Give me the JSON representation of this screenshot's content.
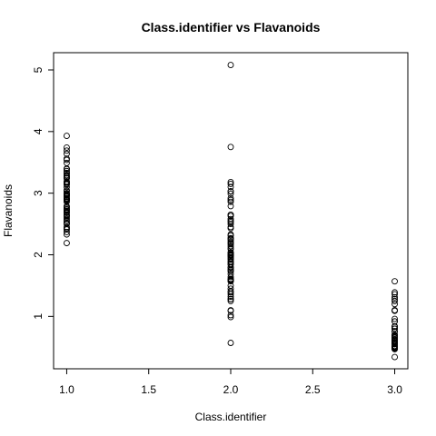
{
  "chart_data": {
    "type": "scatter",
    "title": "Class.identifier vs Flavanoids",
    "xlabel": "Class.identifier",
    "ylabel": "Flavanoids",
    "xlim": [
      0.92,
      3.08
    ],
    "ylim": [
      0.15,
      5.28
    ],
    "xticks": [
      1.0,
      1.5,
      2.0,
      2.5,
      3.0
    ],
    "xtick_labels": [
      "1.0",
      "1.5",
      "2.0",
      "2.5",
      "3.0"
    ],
    "yticks": [
      1,
      2,
      3,
      4,
      5
    ],
    "ytick_labels": [
      "1",
      "2",
      "3",
      "4",
      "5"
    ],
    "grid": false,
    "legend": "none",
    "series": [
      {
        "x": [
          1,
          1,
          1,
          1,
          1,
          1,
          1,
          1,
          1,
          1,
          1,
          1,
          1,
          1,
          1,
          1,
          1,
          1,
          1,
          1,
          1,
          1,
          1,
          1,
          1,
          1,
          1,
          1,
          1,
          1,
          1,
          1,
          1,
          1,
          1,
          1,
          1,
          1,
          1,
          1,
          1,
          1,
          1,
          1,
          1,
          1,
          1,
          1,
          1,
          1,
          1,
          1,
          1,
          1,
          1,
          1,
          1,
          1,
          1
        ],
        "y": [
          3.93,
          3.74,
          3.69,
          3.64,
          3.56,
          3.54,
          3.49,
          3.4,
          3.39,
          3.32,
          3.29,
          3.27,
          3.25,
          3.24,
          3.19,
          3.18,
          3.17,
          3.15,
          3.1,
          3.03,
          3.0,
          2.99,
          2.98,
          2.97,
          2.94,
          2.92,
          2.91,
          2.9,
          2.88,
          2.86,
          2.79,
          2.76,
          2.74,
          2.73,
          2.69,
          2.68,
          2.65,
          2.64,
          2.63,
          2.61,
          2.58,
          2.55,
          2.52,
          2.51,
          2.5,
          2.43,
          2.41,
          2.37,
          2.33,
          2.19,
          2.96,
          3.33,
          3.14,
          2.78,
          3.05,
          2.89,
          2.71,
          2.45,
          3.36
        ]
      },
      {
        "x": [
          2,
          2,
          2,
          2,
          2,
          2,
          2,
          2,
          2,
          2,
          2,
          2,
          2,
          2,
          2,
          2,
          2,
          2,
          2,
          2,
          2,
          2,
          2,
          2,
          2,
          2,
          2,
          2,
          2,
          2,
          2,
          2,
          2,
          2,
          2,
          2,
          2,
          2,
          2,
          2,
          2,
          2,
          2,
          2,
          2,
          2,
          2,
          2,
          2,
          2,
          2,
          2,
          2,
          2,
          2,
          2,
          2,
          2,
          2,
          2,
          2,
          2,
          2,
          2,
          2,
          2,
          2,
          2,
          2,
          2,
          2
        ],
        "y": [
          5.08,
          3.75,
          3.18,
          3.15,
          3.1,
          3.03,
          2.99,
          2.92,
          2.89,
          2.86,
          2.79,
          2.65,
          2.63,
          2.58,
          2.55,
          2.5,
          2.45,
          2.43,
          2.27,
          2.26,
          2.24,
          2.21,
          2.19,
          2.17,
          2.14,
          2.11,
          2.09,
          2.03,
          2.01,
          1.99,
          1.98,
          1.94,
          1.92,
          1.89,
          1.85,
          1.84,
          1.79,
          1.76,
          1.75,
          1.69,
          1.64,
          1.61,
          1.59,
          1.58,
          1.57,
          1.5,
          1.41,
          1.39,
          1.36,
          1.32,
          1.28,
          1.25,
          1.1,
          1.02,
          0.99,
          0.57,
          2.0,
          1.8,
          1.6,
          2.31,
          2.33,
          1.09,
          2.53,
          1.28,
          3.03,
          2.65,
          1.96,
          2.04,
          1.88,
          1.73,
          1.45
        ]
      },
      {
        "x": [
          3,
          3,
          3,
          3,
          3,
          3,
          3,
          3,
          3,
          3,
          3,
          3,
          3,
          3,
          3,
          3,
          3,
          3,
          3,
          3,
          3,
          3,
          3,
          3,
          3,
          3,
          3,
          3,
          3,
          3,
          3,
          3,
          3,
          3,
          3,
          3,
          3,
          3,
          3,
          3,
          3,
          3,
          3,
          3,
          3,
          3,
          3,
          3
        ],
        "y": [
          1.57,
          1.39,
          1.36,
          1.31,
          1.28,
          1.25,
          1.2,
          1.1,
          1.09,
          0.96,
          0.92,
          0.84,
          0.83,
          0.8,
          0.76,
          0.75,
          0.7,
          0.69,
          0.68,
          0.66,
          0.65,
          0.63,
          0.61,
          0.6,
          0.58,
          0.57,
          0.56,
          0.55,
          0.52,
          0.51,
          0.5,
          0.49,
          0.48,
          0.47,
          0.34,
          0.63,
          0.58,
          0.7,
          0.6,
          0.5,
          0.8,
          0.55,
          0.61,
          0.66,
          0.47,
          0.92,
          1.1,
          0.52
        ]
      }
    ]
  }
}
